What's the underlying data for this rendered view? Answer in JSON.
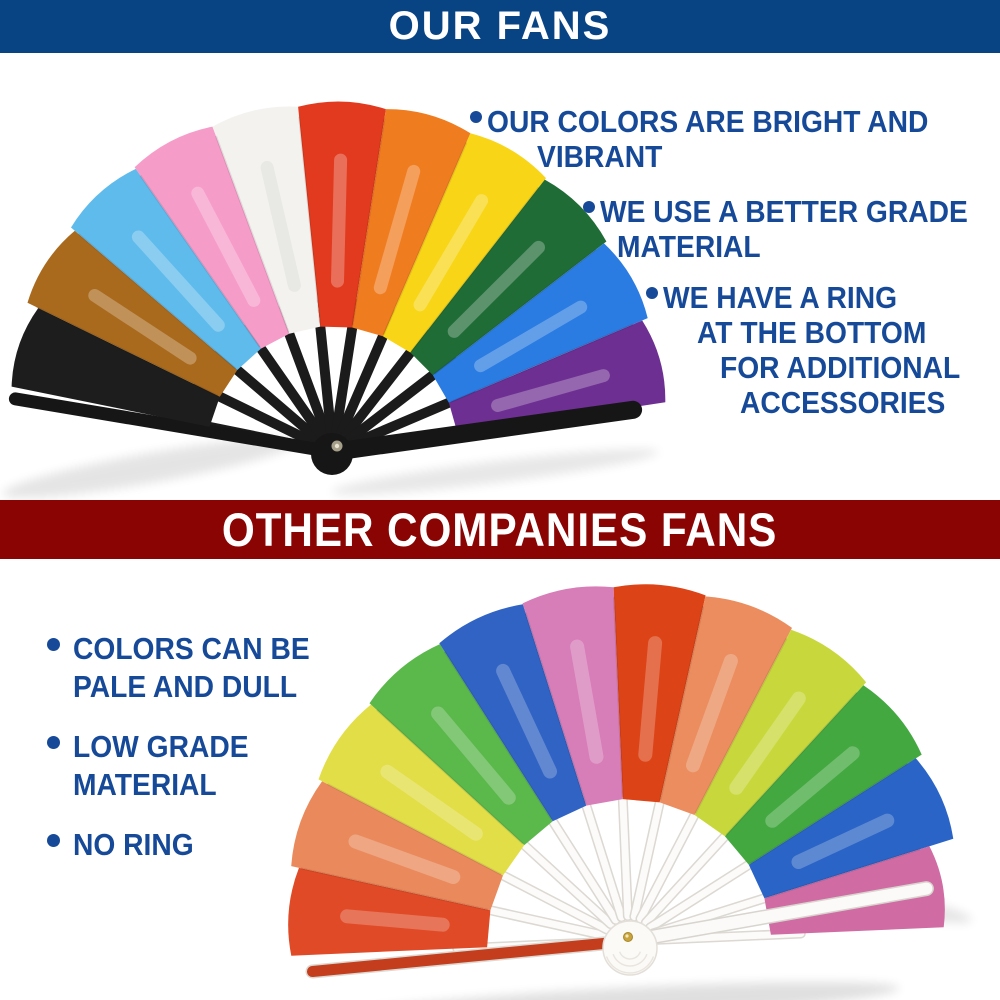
{
  "page": {
    "background": "#ffffff"
  },
  "colors": {
    "banner_blue": "#084484",
    "banner_red": "#8a0404",
    "bullet_text": "#164a99"
  },
  "our_section": {
    "banner_label": "OUR FANS",
    "bullets": [
      {
        "lines": [
          "OUR COLORS ARE BRIGHT AND",
          "VIBRANT"
        ]
      },
      {
        "lines": [
          "WE USE A BETTER GRADE",
          "MATERIAL"
        ]
      },
      {
        "lines": [
          "WE HAVE A RING",
          "AT THE BOTTOM",
          "FOR ADDITIONAL",
          "ACCESSORIES"
        ]
      }
    ],
    "fan": {
      "description": "bright rainbow folding hand fan with black ribs and black guard stick",
      "rib_color": "#1b1b1b",
      "guard_color": "#161616",
      "rivet_color": "#a59f8a",
      "segments": [
        {
          "name": "black",
          "color": "#1d1d1d"
        },
        {
          "name": "brown",
          "color": "#a96a1e"
        },
        {
          "name": "light-blue",
          "color": "#5fbbec"
        },
        {
          "name": "pink",
          "color": "#f69cc9"
        },
        {
          "name": "white",
          "color": "#f3f2ef"
        },
        {
          "name": "red",
          "color": "#e23a1e"
        },
        {
          "name": "orange",
          "color": "#f07c20"
        },
        {
          "name": "yellow",
          "color": "#f8d517"
        },
        {
          "name": "green",
          "color": "#206c36"
        },
        {
          "name": "blue",
          "color": "#2a7ce2"
        },
        {
          "name": "purple",
          "color": "#6d2f92"
        }
      ]
    }
  },
  "other_section": {
    "banner_label": "OTHER COMPANIES FANS",
    "bullets": [
      {
        "lines": [
          "COLORS CAN BE",
          "PALE AND DULL"
        ]
      },
      {
        "lines": [
          "LOW GRADE",
          "MATERIAL"
        ]
      },
      {
        "lines": [
          "NO RING"
        ]
      }
    ],
    "fan": {
      "description": "pale rainbow folding hand fan with white ribs and white guard stick, no ring",
      "rib_color": "#fcfbf9",
      "rib_shadow_color": "#dcd8d2",
      "guard_color": "#fbfaf8",
      "left_guard_color": "#c43d1c",
      "rivet_color": "#c9a43c",
      "segments": [
        {
          "name": "red",
          "color": "#e04a26"
        },
        {
          "name": "orange",
          "color": "#ea8a5c"
        },
        {
          "name": "yellow",
          "color": "#e2de48"
        },
        {
          "name": "green",
          "color": "#5bb84b"
        },
        {
          "name": "blue",
          "color": "#3063c3"
        },
        {
          "name": "orchid-pink",
          "color": "#d77db8"
        },
        {
          "name": "red-2",
          "color": "#dc4317"
        },
        {
          "name": "salmon",
          "color": "#eb8d5e"
        },
        {
          "name": "yellow-green",
          "color": "#c8d83c"
        },
        {
          "name": "green-2",
          "color": "#44a841"
        },
        {
          "name": "blue-2",
          "color": "#2a64c6"
        },
        {
          "name": "pink-2",
          "color": "#d06ba3"
        }
      ]
    }
  }
}
